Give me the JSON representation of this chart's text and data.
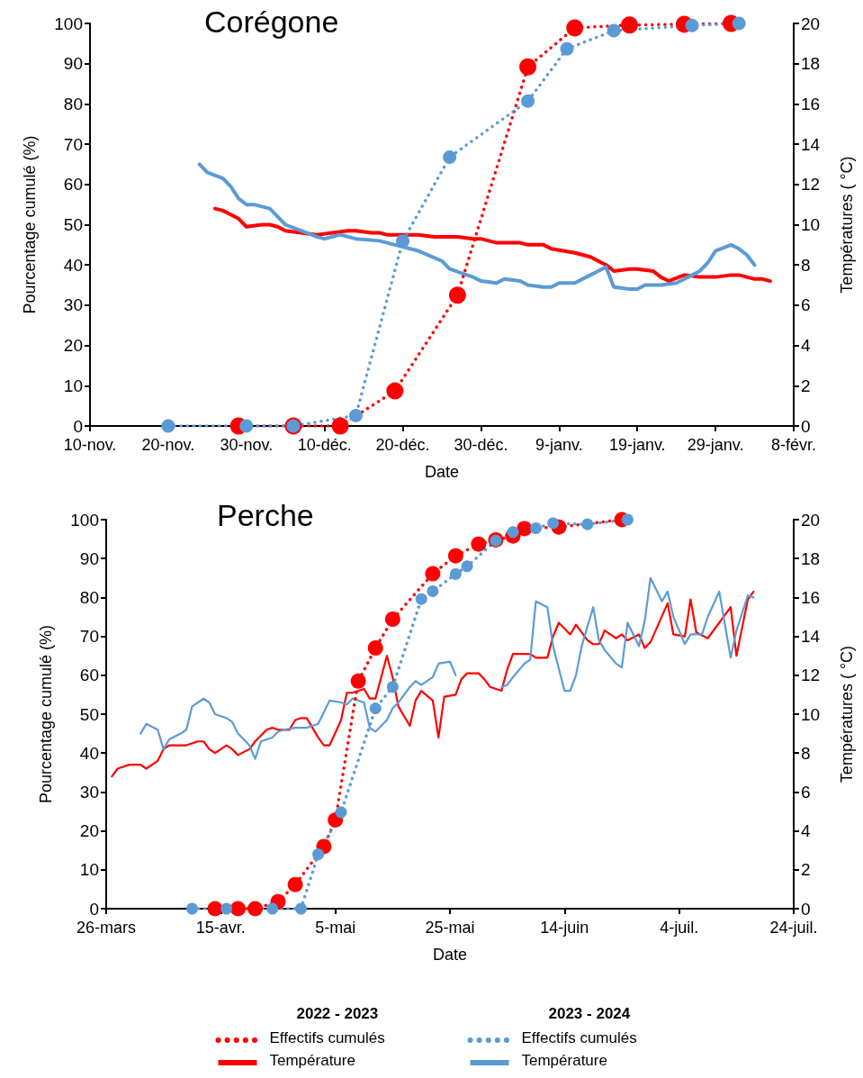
{
  "chart_data": [
    {
      "type": "line",
      "title": "Corégone",
      "xlabel": "Date",
      "ylabel": "Pourcentage cumulé (%)",
      "y2label": "Températures ( °C)",
      "xlim": [
        "2022-11-10",
        "2023-02-08"
      ],
      "xticks": [
        {
          "value": "2022-11-10",
          "label": "10-nov."
        },
        {
          "value": "2022-11-20",
          "label": "20-nov."
        },
        {
          "value": "2022-11-30",
          "label": "30-nov."
        },
        {
          "value": "2022-12-10",
          "label": "10-déc."
        },
        {
          "value": "2022-12-20",
          "label": "20-déc."
        },
        {
          "value": "2022-12-30",
          "label": "30-déc."
        },
        {
          "value": "2023-01-09",
          "label": "9-janv."
        },
        {
          "value": "2023-01-19",
          "label": "19-janv."
        },
        {
          "value": "2023-01-29",
          "label": "29-janv."
        },
        {
          "value": "2023-02-08",
          "label": "8-févr."
        }
      ],
      "ylim": [
        0,
        100
      ],
      "yticks": [
        0,
        10,
        20,
        30,
        40,
        50,
        60,
        70,
        80,
        90,
        100
      ],
      "y2lim": [
        0,
        20
      ],
      "y2ticks": [
        0,
        2,
        4,
        6,
        8,
        10,
        12,
        14,
        16,
        18,
        20
      ],
      "grid": false,
      "series": [
        {
          "color": "#ff0000",
          "marker": "circle",
          "line_style": "dotted",
          "x": [
            "2022-11-29",
            "2022-12-06",
            "2022-12-12",
            "2022-12-19",
            "2022-12-27",
            "2023-01-05",
            "2023-01-11",
            "2023-01-18",
            "2023-01-25",
            "2023-01-31"
          ],
          "values": [
            0,
            0,
            0,
            8.7,
            32.5,
            89.2,
            98.9,
            99.6,
            99.8,
            100
          ]
        },
        {
          "color": "#ff0000",
          "axis": "y2",
          "marker": "none",
          "line_style": "solid",
          "x": [
            "2022-11-26",
            "2022-11-27",
            "2022-11-29",
            "2022-11-30",
            "2022-12-02",
            "2022-12-03",
            "2022-12-04",
            "2022-12-05",
            "2022-12-07",
            "2022-12-09",
            "2022-12-11",
            "2022-12-13",
            "2022-12-14",
            "2022-12-16",
            "2022-12-17",
            "2022-12-18",
            "2022-12-20",
            "2022-12-22",
            "2022-12-24",
            "2022-12-27",
            "2022-12-29",
            "2022-12-30",
            "2023-01-01",
            "2023-01-04",
            "2023-01-05",
            "2023-01-07",
            "2023-01-08",
            "2023-01-11",
            "2023-01-13",
            "2023-01-14",
            "2023-01-15",
            "2023-01-16",
            "2023-01-18",
            "2023-01-19",
            "2023-01-21",
            "2023-01-22",
            "2023-01-23",
            "2023-01-25",
            "2023-01-27",
            "2023-01-28",
            "2023-01-29",
            "2023-01-31",
            "2023-02-01",
            "2023-02-02",
            "2023-02-03",
            "2023-02-04",
            "2023-02-05"
          ],
          "values": [
            10.8,
            10.7,
            10.3,
            9.9,
            10.0,
            10.0,
            9.9,
            9.7,
            9.6,
            9.5,
            9.6,
            9.7,
            9.7,
            9.6,
            9.6,
            9.5,
            9.5,
            9.5,
            9.4,
            9.4,
            9.3,
            9.3,
            9.1,
            9.1,
            9.0,
            9.0,
            8.8,
            8.6,
            8.4,
            8.2,
            8.0,
            7.7,
            7.8,
            7.8,
            7.7,
            7.4,
            7.2,
            7.5,
            7.4,
            7.4,
            7.4,
            7.5,
            7.5,
            7.4,
            7.3,
            7.3,
            7.2
          ]
        },
        {
          "color": "#5b9bd5",
          "marker": "circle",
          "line_style": "dotted",
          "x": [
            "2022-11-20",
            "2022-11-30",
            "2022-12-06",
            "2022-12-14",
            "2022-12-20",
            "2022-12-26",
            "2023-01-05",
            "2023-01-10",
            "2023-01-16",
            "2023-01-26",
            "2023-02-01"
          ],
          "values": [
            0,
            0,
            0,
            2.6,
            45.9,
            66.8,
            80.7,
            93.7,
            98.2,
            99.5,
            100
          ]
        },
        {
          "color": "#5b9bd5",
          "axis": "y2",
          "marker": "none",
          "line_style": "solid",
          "x": [
            "2022-11-24",
            "2022-11-25",
            "2022-11-27",
            "2022-11-28",
            "2022-11-29",
            "2022-11-30",
            "2022-12-01",
            "2022-12-03",
            "2022-12-04",
            "2022-12-05",
            "2022-12-07",
            "2022-12-09",
            "2022-12-10",
            "2022-12-12",
            "2022-12-14",
            "2022-12-17",
            "2022-12-20",
            "2022-12-22",
            "2022-12-25",
            "2022-12-26",
            "2022-12-29",
            "2022-12-30",
            "2023-01-01",
            "2023-01-02",
            "2023-01-04",
            "2023-01-05",
            "2023-01-07",
            "2023-01-08",
            "2023-01-09",
            "2023-01-11",
            "2023-01-13",
            "2023-01-14",
            "2023-01-15",
            "2023-01-16",
            "2023-01-18",
            "2023-01-19",
            "2023-01-20",
            "2023-01-22",
            "2023-01-24",
            "2023-01-26",
            "2023-01-27",
            "2023-01-28",
            "2023-01-29",
            "2023-01-31",
            "2023-02-01",
            "2023-02-02",
            "2023-02-03"
          ],
          "values": [
            13.0,
            12.6,
            12.3,
            11.9,
            11.3,
            11.0,
            11.0,
            10.8,
            10.4,
            10.0,
            9.7,
            9.4,
            9.3,
            9.5,
            9.3,
            9.2,
            8.9,
            8.7,
            8.2,
            7.8,
            7.4,
            7.2,
            7.1,
            7.3,
            7.2,
            7.0,
            6.9,
            6.9,
            7.1,
            7.1,
            7.5,
            7.7,
            7.9,
            6.9,
            6.8,
            6.8,
            7.0,
            7.0,
            7.1,
            7.5,
            7.7,
            8.1,
            8.7,
            9.0,
            8.8,
            8.5,
            8.0
          ]
        }
      ]
    },
    {
      "type": "line",
      "title": "Perche",
      "xlabel": "Date",
      "ylabel": "Pourcentage cumulé (%)",
      "y2label": "Températures ( °C)",
      "xlim": [
        "--03-26",
        "--07-24"
      ],
      "xticks": [
        {
          "value": "--03-26",
          "label": "26-mars"
        },
        {
          "value": "--04-15",
          "label": "15-avr."
        },
        {
          "value": "--05-05",
          "label": "5-mai"
        },
        {
          "value": "--05-25",
          "label": "25-mai"
        },
        {
          "value": "--06-14",
          "label": "14-juin"
        },
        {
          "value": "--07-04",
          "label": "4-juil."
        },
        {
          "value": "--07-24",
          "label": "24-juil."
        }
      ],
      "ylim": [
        0,
        100
      ],
      "yticks": [
        0,
        10,
        20,
        30,
        40,
        50,
        60,
        70,
        80,
        90,
        100
      ],
      "y2lim": [
        0,
        20
      ],
      "y2ticks": [
        0,
        2,
        4,
        6,
        8,
        10,
        12,
        14,
        16,
        18,
        20
      ],
      "grid": false,
      "legend": "bottom",
      "annotations": [
        "2022 - 2023",
        "2023 - 2024"
      ],
      "series": [
        {
          "name": "Effectifs cumulés",
          "color": "#ff0000",
          "marker": "circle",
          "line_style": "dotted",
          "x": [
            "--04-14",
            "--04-18",
            "--04-21",
            "--04-25",
            "--04-28",
            "--05-03",
            "--05-05",
            "--05-09",
            "--05-12",
            "--05-15",
            "--05-22",
            "--05-26",
            "--05-30",
            "--06-02",
            "--06-05",
            "--06-07",
            "--06-13",
            "--06-24"
          ],
          "values": [
            0,
            0,
            0,
            1.8,
            6.2,
            16,
            22.8,
            58.5,
            67,
            74.4,
            86.1,
            90.7,
            93.7,
            94.8,
            95.8,
            97.7,
            98.1,
            100
          ]
        },
        {
          "name": "Température",
          "color": "#ff0000",
          "axis": "y2",
          "marker": "none",
          "line_style": "solid",
          "x": [
            "--03-27",
            "--03-28",
            "--03-30",
            "--04-01",
            "--04-02",
            "--04-04",
            "--04-05",
            "--04-06",
            "--04-08",
            "--04-09",
            "--04-11",
            "--04-12",
            "--04-13",
            "--04-14",
            "--04-16",
            "--04-17",
            "--04-18",
            "--04-20",
            "--04-21",
            "--04-23",
            "--04-24",
            "--04-25",
            "--04-27",
            "--04-28",
            "--04-29",
            "--04-30",
            "--05-02",
            "--05-03",
            "--05-04",
            "--05-06",
            "--05-07",
            "--05-08",
            "--05-10",
            "--05-11",
            "--05-12",
            "--05-14",
            "--05-15",
            "--05-16",
            "--05-18",
            "--05-19",
            "--05-20",
            "--05-22",
            "--05-23",
            "--05-24",
            "--05-26",
            "--05-27",
            "--05-28",
            "--05-30",
            "--05-31",
            "--06-01",
            "--06-03",
            "--06-04",
            "--06-05",
            "--06-08",
            "--06-09",
            "--06-11",
            "--06-12",
            "--06-13",
            "--06-15",
            "--06-16",
            "--06-18",
            "--06-19",
            "--06-20",
            "--06-21",
            "--06-23",
            "--06-24",
            "--06-25",
            "--06-27",
            "--06-28",
            "--06-29",
            "--07-02",
            "--07-03",
            "--07-05",
            "--07-06",
            "--07-07",
            "--07-09",
            "--07-13",
            "--07-14",
            "--07-16",
            "--07-17"
          ],
          "values": [
            6.8,
            7.2,
            7.4,
            7.4,
            7.2,
            7.6,
            8.2,
            8.4,
            8.4,
            8.4,
            8.6,
            8.6,
            8.2,
            8.0,
            8.4,
            8.2,
            7.9,
            8.2,
            8.6,
            9.2,
            9.3,
            9.2,
            9.2,
            9.7,
            9.8,
            9.8,
            8.8,
            8.4,
            8.4,
            9.7,
            11.1,
            11.1,
            11.3,
            10.8,
            10.8,
            13.0,
            11.9,
            10.4,
            9.4,
            10.7,
            11.2,
            10.7,
            8.8,
            10.9,
            11.0,
            11.8,
            12.1,
            12.1,
            11.8,
            11.4,
            11.2,
            12.3,
            13.1,
            13.1,
            12.9,
            12.9,
            14.0,
            14.7,
            14.1,
            14.6,
            13.8,
            13.6,
            13.6,
            14.3,
            13.9,
            14.1,
            13.8,
            14.1,
            13.4,
            13.7,
            15.7,
            14.1,
            14.0,
            15.9,
            14.2,
            13.9,
            15.5,
            13.0,
            15.9,
            16.3
          ]
        },
        {
          "name": "Effectifs cumulés",
          "color": "#5b9bd5",
          "marker": "circle",
          "line_style": "dotted",
          "x": [
            "--04-10",
            "--04-16",
            "--04-24",
            "--04-29",
            "--05-02",
            "--05-06",
            "--05-12",
            "--05-15",
            "--05-20",
            "--05-22",
            "--05-26",
            "--05-28",
            "--06-02",
            "--06-05",
            "--06-09",
            "--06-12",
            "--06-18",
            "--06-25"
          ],
          "values": [
            0,
            0,
            0,
            0,
            14,
            24.8,
            51.5,
            57,
            79.6,
            81.6,
            86,
            88,
            94.6,
            96.8,
            97.8,
            99.1,
            98.8,
            100
          ]
        },
        {
          "name": "Température",
          "color": "#5b9bd5",
          "axis": "y2",
          "marker": "none",
          "line_style": "solid",
          "x": [
            "--04-01",
            "--04-02",
            "--04-04",
            "--04-05",
            "--04-06",
            "--04-08",
            "--04-09",
            "--04-10",
            "--04-12",
            "--04-13",
            "--04-14",
            "--04-16",
            "--04-17",
            "--04-18",
            "--04-20",
            "--04-21",
            "--04-22",
            "--04-24",
            "--04-25",
            "--04-26",
            "--04-28",
            "--04-29",
            "--04-30",
            "--05-02",
            "--05-03",
            "--05-04",
            "--05-06",
            "--05-07",
            "--05-08",
            "--05-10",
            "--05-11",
            "--05-12",
            "--05-14",
            "--05-15",
            "--05-16",
            "--05-18",
            "--05-19",
            "--05-20",
            "--05-22",
            "--05-23",
            "--05-25",
            "--05-26",
            "--05-30",
            "--06-03",
            "--06-04",
            "--06-05",
            "--06-07",
            "--06-08",
            "--06-09",
            "--06-11",
            "--06-12",
            "--06-14",
            "--06-15",
            "--06-16",
            "--06-17",
            "--06-19",
            "--06-20",
            "--06-21",
            "--06-23",
            "--06-24",
            "--06-25",
            "--06-27",
            "--06-28",
            "--06-29",
            "--07-01",
            "--07-02",
            "--07-03",
            "--07-05",
            "--07-06",
            "--07-08",
            "--07-09",
            "--07-11",
            "--07-13",
            "--07-14",
            "--07-16",
            "--07-17"
          ],
          "values": [
            9.0,
            9.5,
            9.2,
            8.2,
            8.7,
            9.0,
            9.2,
            10.4,
            10.8,
            10.6,
            10.0,
            9.8,
            9.6,
            9.0,
            8.4,
            7.7,
            8.6,
            8.8,
            9.1,
            9.2,
            9.3,
            9.3,
            9.3,
            9.5,
            10.1,
            10.7,
            10.6,
            10.5,
            10.8,
            10.6,
            9.3,
            9.1,
            9.7,
            10.3,
            10.6,
            11.4,
            11.7,
            11.5,
            11.9,
            12.6,
            12.7,
            12.0,
            null,
            11.4,
            11.5,
            11.9,
            12.6,
            12.8,
            15.8,
            15.5,
            13.5,
            11.2,
            11.2,
            12.0,
            13.5,
            15.5,
            13.8,
            13.3,
            12.6,
            12.4,
            14.7,
            13.5,
            14.8,
            17.0,
            15.8,
            16.3,
            15.0,
            13.6,
            14.1,
            14.1,
            15.0,
            16.3,
            12.9,
            14.3,
            16.1,
            16.0
          ]
        }
      ]
    }
  ]
}
